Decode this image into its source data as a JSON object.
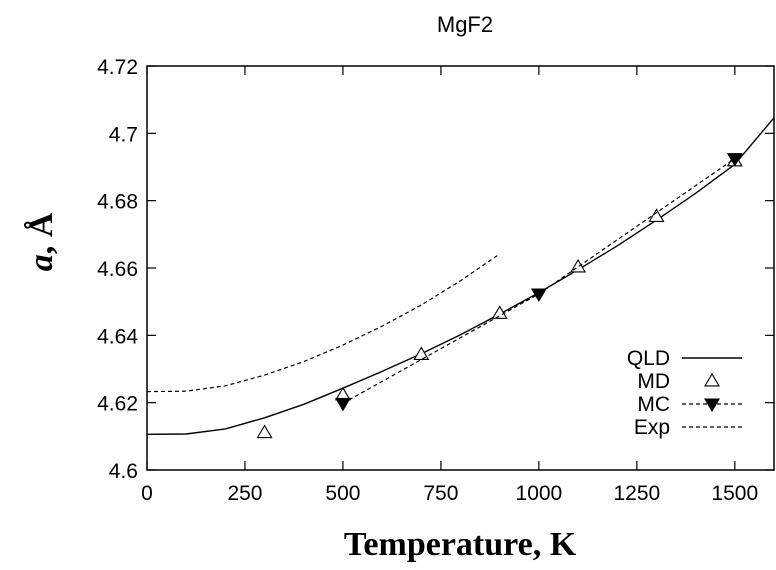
{
  "chart_data": {
    "type": "line",
    "title": "MgF2",
    "xlabel": "Temperature, K",
    "ylabel_italic": "a",
    "ylabel_rest": ", Å",
    "xlim": [
      0,
      1600
    ],
    "ylim": [
      4.6,
      4.72
    ],
    "xticks": [
      0,
      250,
      500,
      750,
      1000,
      1250,
      1500
    ],
    "yticks": [
      4.6,
      4.62,
      4.64,
      4.66,
      4.68,
      4.7,
      4.72
    ],
    "xtick_labels": [
      "0",
      "250",
      "500",
      "750",
      "1000",
      "1250",
      "1500"
    ],
    "ytick_labels": [
      "4.6",
      "4.62",
      "4.64",
      "4.66",
      "4.68",
      "4.7",
      "4.72"
    ],
    "grid": false,
    "legend_position": "bottom-right",
    "series": [
      {
        "name": "QLD",
        "style": "solid-line",
        "x": [
          0,
          100,
          200,
          300,
          400,
          500,
          600,
          700,
          800,
          900,
          1000,
          1100,
          1200,
          1300,
          1400,
          1500,
          1600
        ],
        "y": [
          4.6106,
          4.6107,
          4.6122,
          4.6155,
          4.6195,
          4.6243,
          4.6293,
          4.6345,
          4.6402,
          4.6463,
          4.6527,
          4.6595,
          4.6666,
          4.6742,
          4.6822,
          4.6908,
          4.7046
        ]
      },
      {
        "name": "MD",
        "style": "open-triangle",
        "x": [
          300,
          500,
          700,
          900,
          1100,
          1300,
          1500
        ],
        "y": [
          4.6111,
          4.6223,
          4.6343,
          4.6465,
          4.6603,
          4.6753,
          4.6918
        ]
      },
      {
        "name": "MC",
        "style": "dashed-filled-triangle",
        "x": [
          500,
          1000,
          1500
        ],
        "y": [
          4.6198,
          4.6523,
          4.6925
        ]
      },
      {
        "name": "Exp",
        "style": "dashed-line",
        "x": [
          0,
          100,
          200,
          300,
          400,
          500,
          600,
          700,
          800,
          900
        ],
        "y": [
          4.6233,
          4.6234,
          4.625,
          4.6282,
          4.6322,
          4.6371,
          4.6427,
          4.649,
          4.6562,
          4.6642
        ]
      }
    ]
  }
}
